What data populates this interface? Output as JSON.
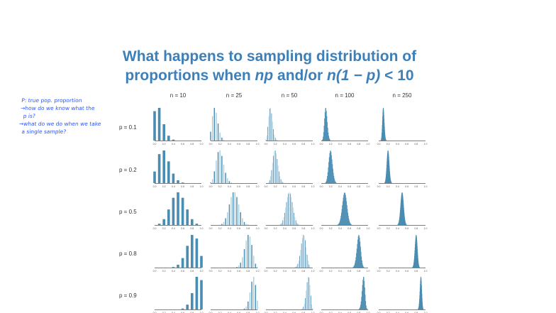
{
  "title": {
    "line1": "What happens to sampling distribution of",
    "line2_a": "proportions when ",
    "line2_np": "np",
    "line2_b": " and/or ",
    "line2_n1p": "n(1 − p)",
    "line2_c": " < 10"
  },
  "notes": [
    "P: true pop. proportion",
    "→how do we know what the",
    "  p is?",
    "→what do we do when we take",
    "  a single sample?"
  ],
  "chart_data": {
    "type": "bar",
    "description_kind": "small multiples of sampling distributions of sample proportion (binomial k/n)",
    "columns": [
      {
        "label": "n = 10",
        "n": 10
      },
      {
        "label": "n = 25",
        "n": 25
      },
      {
        "label": "n = 50",
        "n": 50
      },
      {
        "label": "n = 100",
        "n": 100
      },
      {
        "label": "n = 250",
        "n": 250
      }
    ],
    "rows": [
      {
        "label": "p = 0.1",
        "p": 0.1
      },
      {
        "label": "p = 0.2",
        "p": 0.2
      },
      {
        "label": "p = 0.5",
        "p": 0.5
      },
      {
        "label": "p = 0.8",
        "p": 0.8
      },
      {
        "label": "p = 0.9",
        "p": 0.9
      }
    ],
    "xlim": [
      0,
      1
    ],
    "xticks": [
      "0.0",
      "0.2",
      "0.4",
      "0.6",
      "0.8",
      "1.0"
    ],
    "grid": false,
    "colors": {
      "bar": "#4a8db3",
      "bar_light": "#a9cfe2",
      "axis": "#555555"
    }
  }
}
